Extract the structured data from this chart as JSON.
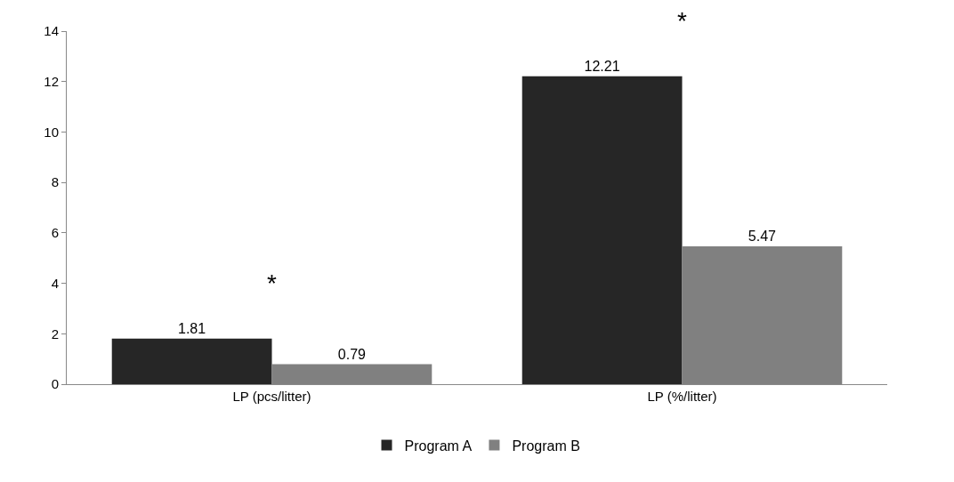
{
  "chart_data": {
    "type": "bar",
    "categories": [
      "LP (pcs/litter)",
      "LP (%/litter)"
    ],
    "series": [
      {
        "name": "Program A",
        "color": "#262626",
        "values": [
          1.81,
          12.21
        ]
      },
      {
        "name": "Program B",
        "color": "#808080",
        "values": [
          0.79,
          5.47
        ]
      }
    ],
    "ylim": [
      0,
      14
    ],
    "yticks": [
      0,
      2,
      4,
      6,
      8,
      10,
      12,
      14
    ],
    "legend": "bottom",
    "data_labels": true,
    "annotations": [
      "*",
      "*"
    ]
  }
}
